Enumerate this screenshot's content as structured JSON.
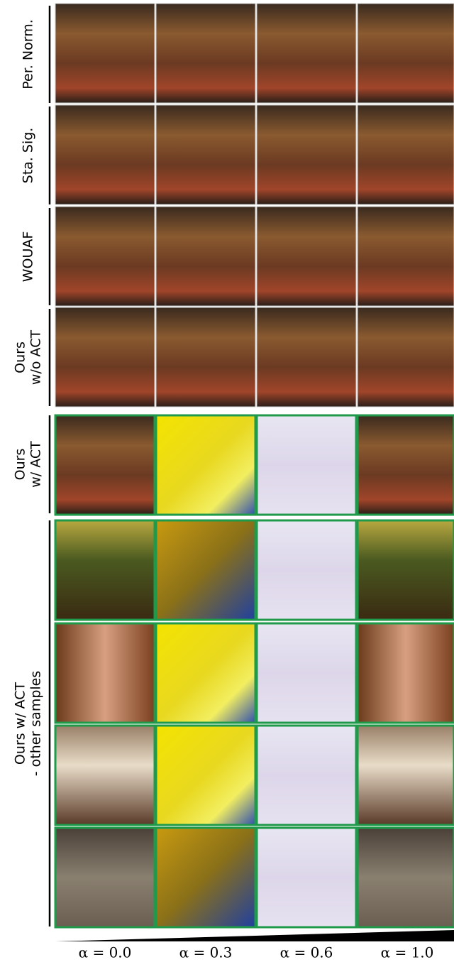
{
  "row_labels": [
    [
      "Per. Norm."
    ],
    [
      "Sta. Sig."
    ],
    [
      "WOUAF"
    ],
    [
      "Ours",
      "w/o ACT"
    ],
    [
      "Ours",
      "w/ ACT"
    ],
    [
      "Ours w/ ACT",
      "- other samples"
    ]
  ],
  "column_labels": [
    "α = 0.0",
    "α = 0.3",
    "α = 0.6",
    "α = 1.0"
  ]
}
